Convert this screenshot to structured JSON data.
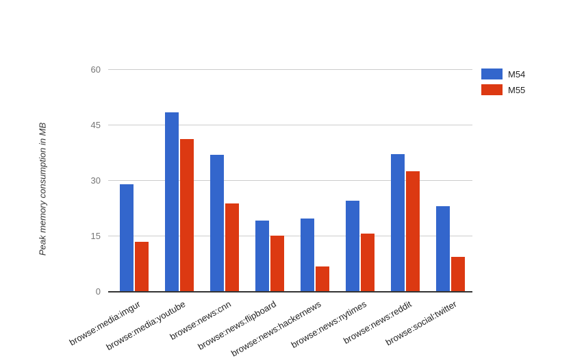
{
  "chart_data": {
    "type": "bar",
    "title": "",
    "ylabel": "Peak memory consumption in MB",
    "xlabel": "",
    "ylim": [
      0,
      60
    ],
    "yticks": [
      0,
      15,
      30,
      45,
      60
    ],
    "grid": true,
    "legend_position": "top-right",
    "categories": [
      "browse:media:imgur",
      "browse:media:youtube",
      "browse:news:cnn",
      "browse:news:flipboard",
      "browse:news:hackernews",
      "browse:news:nytimes",
      "browse:news:reddit",
      "browse:social:twitter"
    ],
    "series": [
      {
        "name": "M54",
        "color": "#3366cc",
        "values": [
          29.0,
          48.5,
          37.1,
          19.2,
          19.8,
          24.7,
          37.2,
          23.2
        ]
      },
      {
        "name": "M55",
        "color": "#dc3912",
        "values": [
          13.5,
          41.3,
          23.8,
          15.2,
          6.9,
          15.7,
          32.6,
          9.4
        ]
      }
    ],
    "colors": {
      "gridline": "#cccccc",
      "axis_line": "#333333",
      "tick_label": "#757575",
      "category_label": "#222222",
      "legend_label": "#222222",
      "background": "#ffffff"
    }
  }
}
